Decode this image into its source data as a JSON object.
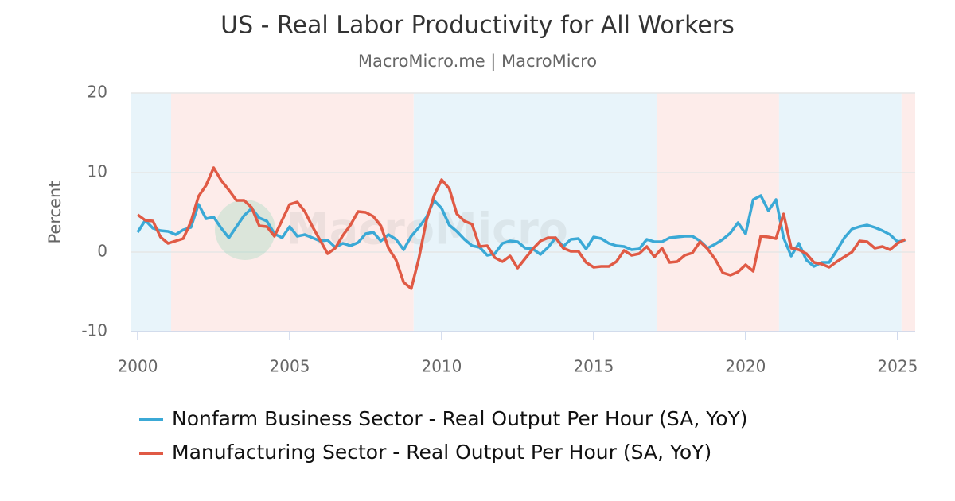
{
  "chart_data": {
    "type": "line",
    "title": "US - Real Labor Productivity for All Workers",
    "subtitle": "MacroMicro.me | MacroMicro",
    "watermark": "MacroMicro",
    "y_label": "Percent",
    "xlim": [
      1999.79,
      2025.58
    ],
    "ylim": [
      -10,
      20
    ],
    "xticks": [
      2000,
      2005,
      2010,
      2015,
      2020,
      2025
    ],
    "yticks": [
      -10,
      0,
      10,
      20
    ],
    "grid": true,
    "legend": "bottom",
    "bands": [
      {
        "from": 1999.79,
        "to": 2001.1,
        "color": "#e8f4fa"
      },
      {
        "from": 2001.1,
        "to": 2009.08,
        "color": "#fdecea"
      },
      {
        "from": 2009.08,
        "to": 2017.09,
        "color": "#e8f4fa"
      },
      {
        "from": 2017.09,
        "to": 2021.1,
        "color": "#fdecea"
      },
      {
        "from": 2021.1,
        "to": 2025.13,
        "color": "#e8f4fa"
      },
      {
        "from": 2025.13,
        "to": 2025.58,
        "color": "#fdecea"
      }
    ],
    "x": [
      2000,
      2000.25,
      2000.5,
      2000.75,
      2001,
      2001.25,
      2001.5,
      2001.75,
      2002,
      2002.25,
      2002.5,
      2002.75,
      2003,
      2003.25,
      2003.5,
      2003.75,
      2004,
      2004.25,
      2004.5,
      2004.75,
      2005,
      2005.25,
      2005.5,
      2005.75,
      2006,
      2006.25,
      2006.5,
      2006.75,
      2007,
      2007.25,
      2007.5,
      2007.75,
      2008,
      2008.25,
      2008.5,
      2008.75,
      2009,
      2009.25,
      2009.5,
      2009.75,
      2010,
      2010.25,
      2010.5,
      2010.75,
      2011,
      2011.25,
      2011.5,
      2011.75,
      2012,
      2012.25,
      2012.5,
      2012.75,
      2013,
      2013.25,
      2013.5,
      2013.75,
      2014,
      2014.25,
      2014.5,
      2014.75,
      2015,
      2015.25,
      2015.5,
      2015.75,
      2016,
      2016.25,
      2016.5,
      2016.75,
      2017,
      2017.25,
      2017.5,
      2017.75,
      2018,
      2018.25,
      2018.5,
      2018.75,
      2019,
      2019.25,
      2019.5,
      2019.75,
      2020,
      2020.25,
      2020.5,
      2020.75,
      2021,
      2021.25,
      2021.5,
      2021.75,
      2022,
      2022.25,
      2022.5,
      2022.75,
      2023,
      2023.25,
      2023.5,
      2023.75,
      2024,
      2024.25,
      2024.5,
      2024.75,
      2025,
      2025.25
    ],
    "series": [
      {
        "name": "Nonfarm Business Sector - Real Output Per Hour (SA, YoY)",
        "color": "#3ba9d6",
        "values": [
          2.5,
          4.0,
          3.0,
          2.7,
          2.6,
          2.2,
          2.8,
          3.1,
          6.0,
          4.2,
          4.4,
          3.0,
          1.8,
          3.2,
          4.6,
          5.5,
          4.3,
          3.9,
          2.3,
          1.8,
          3.2,
          2.0,
          2.2,
          1.8,
          1.4,
          1.5,
          0.6,
          1.1,
          0.8,
          1.2,
          2.3,
          2.5,
          1.4,
          2.2,
          1.6,
          0.3,
          2.0,
          3.1,
          4.4,
          6.5,
          5.5,
          3.4,
          2.6,
          1.6,
          0.8,
          0.6,
          -0.4,
          -0.2,
          1.1,
          1.4,
          1.3,
          0.5,
          0.4,
          -0.3,
          0.6,
          1.8,
          0.7,
          1.6,
          1.7,
          0.4,
          1.9,
          1.7,
          1.1,
          0.8,
          0.7,
          0.3,
          0.4,
          1.6,
          1.3,
          1.3,
          1.8,
          1.9,
          2.0,
          2.0,
          1.4,
          0.5,
          1.0,
          1.6,
          2.4,
          3.7,
          2.3,
          6.6,
          7.1,
          5.2,
          6.6,
          1.8,
          -0.5,
          1.1,
          -1.0,
          -1.8,
          -1.3,
          -1.3,
          0.2,
          1.8,
          2.9,
          3.2,
          3.4,
          3.1,
          2.7,
          2.2,
          1.3,
          1.5
        ]
      },
      {
        "name": "Manufacturing Sector - Real Output Per Hour (SA, YoY)",
        "color": "#e05a45",
        "values": [
          4.7,
          4.0,
          3.9,
          1.9,
          1.1,
          1.4,
          1.7,
          3.8,
          7.0,
          8.4,
          10.6,
          9.0,
          7.8,
          6.5,
          6.5,
          5.6,
          3.3,
          3.2,
          2.0,
          4.0,
          6.0,
          6.3,
          5.1,
          3.2,
          1.5,
          -0.2,
          0.5,
          2.1,
          3.4,
          5.1,
          5.0,
          4.5,
          3.3,
          0.5,
          -1.0,
          -3.8,
          -4.6,
          -0.8,
          4.0,
          7.1,
          9.1,
          8.0,
          4.8,
          3.9,
          3.5,
          0.7,
          0.8,
          -0.7,
          -1.2,
          -0.5,
          -2.0,
          -0.8,
          0.4,
          1.4,
          1.8,
          1.8,
          0.5,
          0.1,
          0.1,
          -1.3,
          -1.9,
          -1.8,
          -1.8,
          -1.2,
          0.2,
          -0.4,
          -0.2,
          0.7,
          -0.6,
          0.5,
          -1.3,
          -1.2,
          -0.4,
          -0.1,
          1.3,
          0.4,
          -0.9,
          -2.6,
          -2.9,
          -2.5,
          -1.6,
          -2.4,
          2.0,
          1.9,
          1.7,
          4.8,
          0.5,
          0.3,
          -0.2,
          -1.3,
          -1.5,
          -1.9,
          -1.2,
          -0.6,
          0.0,
          1.4,
          1.3,
          0.5,
          0.7,
          0.3,
          1.1,
          1.6
        ]
      }
    ]
  }
}
